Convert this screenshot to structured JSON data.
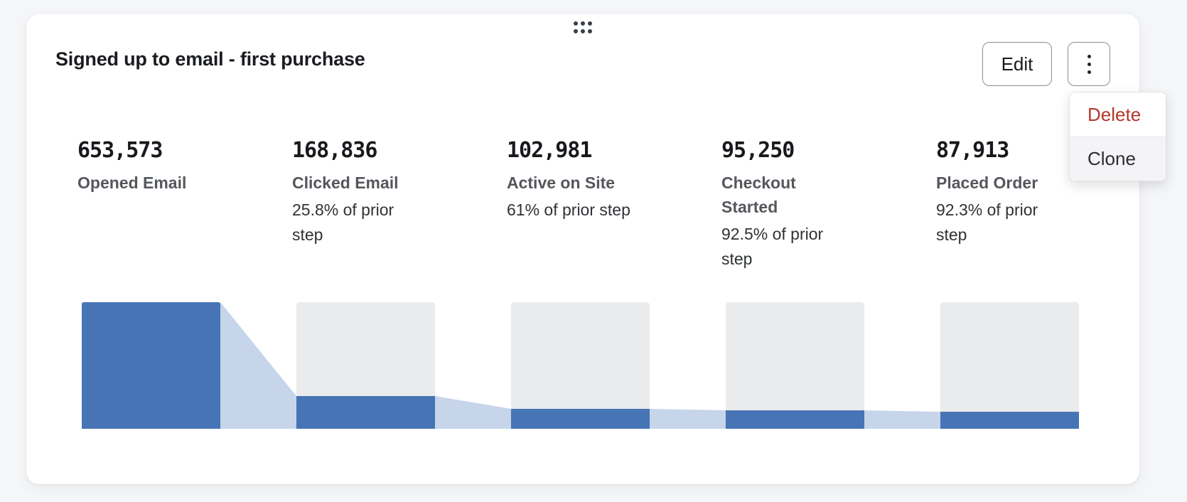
{
  "page": {
    "background": "#f5f6f8"
  },
  "widget": {
    "title": "Signed up to email - first purchase",
    "actions": {
      "edit_label": "Edit",
      "more_menu": {
        "icon": "kebab-vertical-dots",
        "open": true,
        "items": [
          {
            "label": "Delete",
            "color": "#b3382d"
          },
          {
            "label": "Clone",
            "color": "#2b2d30"
          }
        ]
      }
    },
    "drag_handle": "six-dot-grip"
  },
  "chart_data": {
    "type": "bar",
    "subtype": "funnel",
    "title": "Signed up to email - first purchase",
    "scale_note": "bar fill height proportional to value relative to first step; gray track = 100% reference",
    "steps": [
      {
        "value": 653573,
        "value_label": "653,573",
        "label": "Opened Email",
        "conversion": null
      },
      {
        "value": 168836,
        "value_label": "168,836",
        "label": "Clicked Email",
        "conversion": "25.8% of prior step"
      },
      {
        "value": 102981,
        "value_label": "102,981",
        "label": "Active on Site",
        "conversion": "61% of prior step"
      },
      {
        "value": 95250,
        "value_label": "95,250",
        "label": "Checkout Started",
        "conversion": "92.5% of prior step"
      },
      {
        "value": 87913,
        "value_label": "87,913",
        "label": "Placed Order",
        "conversion": "92.3% of prior step"
      }
    ],
    "colors": {
      "bar": "#4674b5",
      "connector": "#c6d5ea",
      "track": "#e9ebec"
    },
    "legend": "none",
    "grid": "off"
  }
}
